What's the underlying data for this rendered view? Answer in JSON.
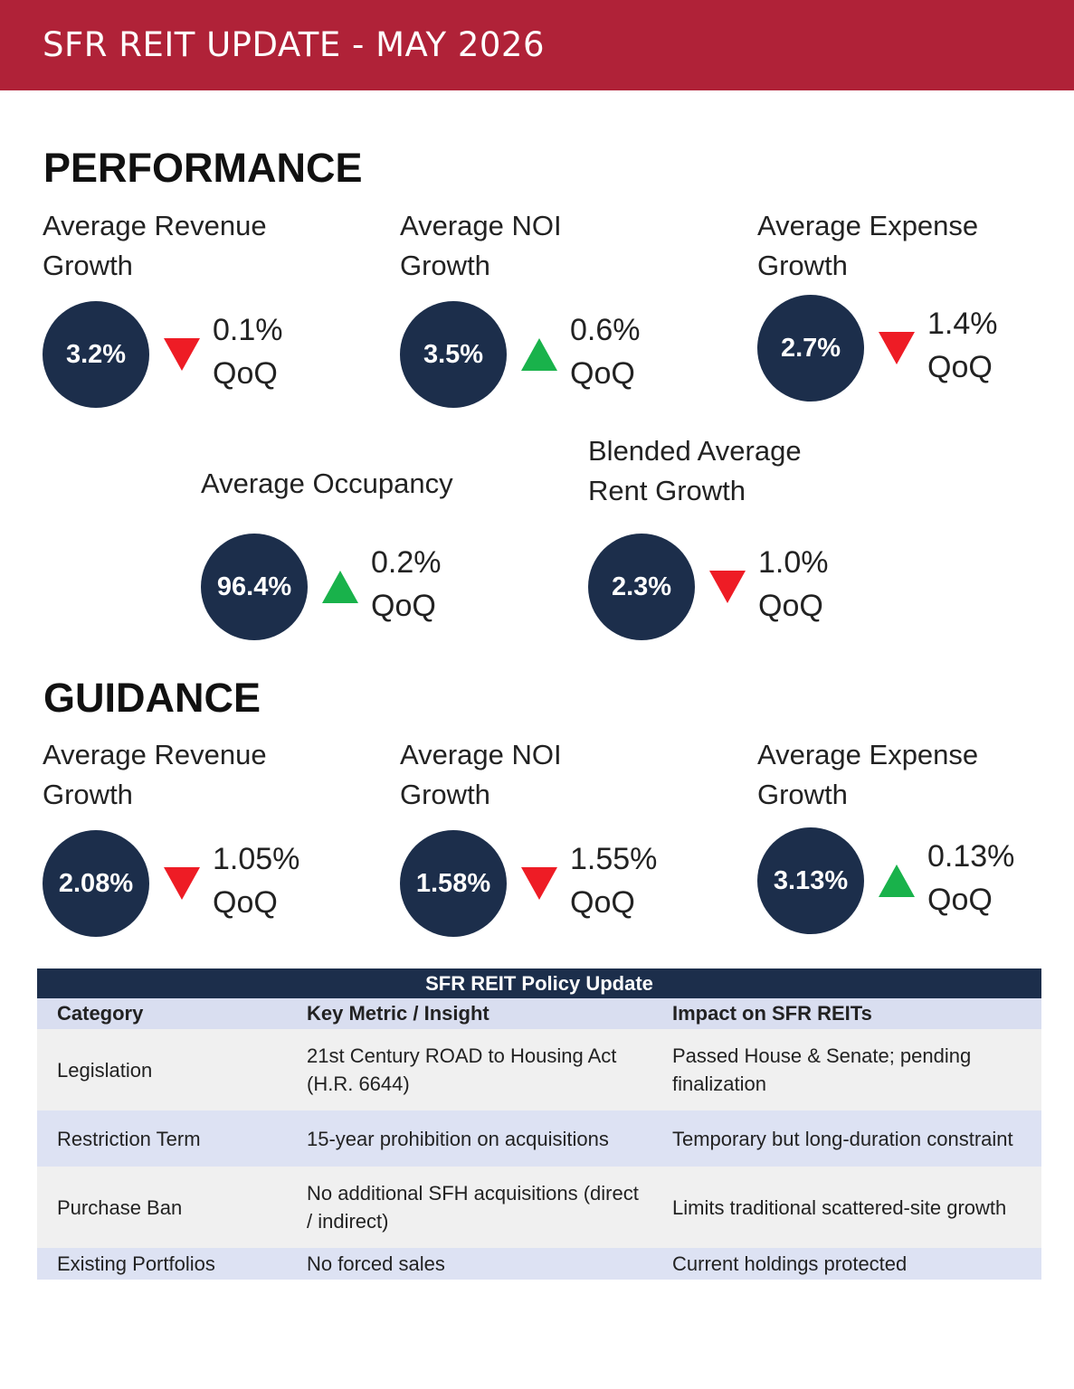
{
  "header": {
    "title": "SFR REIT UPDATE - MAY 2026"
  },
  "performance": {
    "title": "PERFORMANCE",
    "metrics": [
      {
        "label": [
          "Average Revenue",
          "Growth"
        ],
        "value": "3.2%",
        "direction": "down",
        "change": "0.1%",
        "period": "QoQ"
      },
      {
        "label": [
          "Average NOI",
          "Growth"
        ],
        "value": "3.5%",
        "direction": "up",
        "change": "0.6%",
        "period": "QoQ"
      },
      {
        "label": [
          "Average Expense",
          "Growth"
        ],
        "value": "2.7%",
        "direction": "down",
        "change": "1.4%",
        "period": "QoQ"
      },
      {
        "label": [
          "Average Occupancy"
        ],
        "value": "96.4%",
        "direction": "up",
        "change": "0.2%",
        "period": "QoQ"
      },
      {
        "label": [
          "Blended Average",
          "Rent Growth"
        ],
        "value": "2.3%",
        "direction": "down",
        "change": "1.0%",
        "period": "QoQ"
      }
    ]
  },
  "guidance": {
    "title": "GUIDANCE",
    "metrics": [
      {
        "label": [
          "Average Revenue",
          "Growth"
        ],
        "value": "2.08%",
        "direction": "down",
        "change": "1.05%",
        "period": "QoQ"
      },
      {
        "label": [
          "Average NOI",
          "Growth"
        ],
        "value": "1.58%",
        "direction": "down",
        "change": "1.55%",
        "period": "QoQ"
      },
      {
        "label": [
          "Average Expense",
          "Growth"
        ],
        "value": "3.13%",
        "direction": "up",
        "change": "0.13%",
        "period": "QoQ"
      }
    ]
  },
  "table": {
    "title": "SFR REIT Policy Update",
    "columns": [
      "Category",
      "Key Metric / Insight",
      "Impact on SFR REITs"
    ],
    "rows": [
      [
        "Legislation",
        "21st Century ROAD to Housing Act (H.R. 6644)",
        "Passed House & Senate; pending finalization"
      ],
      [
        "Restriction Term",
        "15-year prohibition on acquisitions",
        "Temporary but long-duration constraint"
      ],
      [
        "Purchase Ban",
        "No additional SFH acquisitions (direct / indirect)",
        "Limits traditional scattered-site growth"
      ],
      [
        "Existing Portfolios",
        "No forced sales",
        "Current holdings protected"
      ]
    ]
  }
}
